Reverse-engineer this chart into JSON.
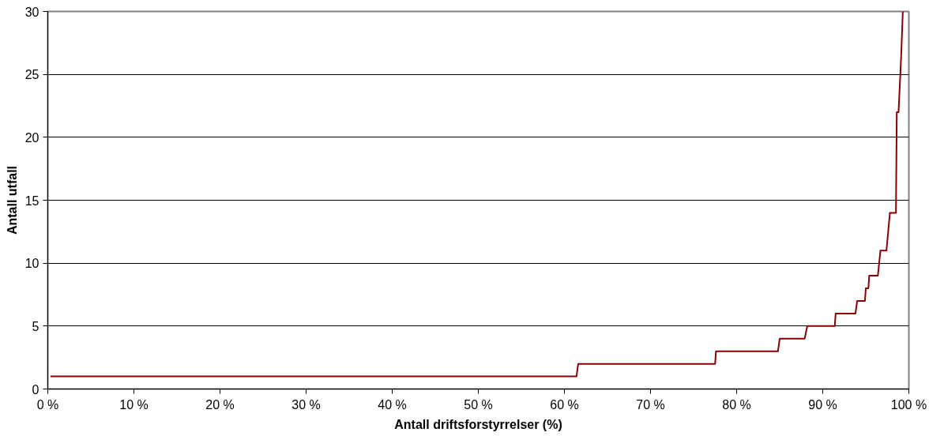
{
  "chart_data": {
    "type": "line",
    "xlabel": "Antall driftsforstyrrelser (%)",
    "ylabel": "Antall utfall",
    "series": [
      {
        "color": "#8b0000",
        "x": [
          0.3,
          61.4,
          61.6,
          77.5,
          77.6,
          84.8,
          85.0,
          87.9,
          88.2,
          91.4,
          91.5,
          93.8,
          94.0,
          94.9,
          95.0,
          95.3,
          95.4,
          96.4,
          96.7,
          97.4,
          97.8,
          98.5,
          98.6,
          98.8,
          98.9,
          99.1,
          99.3
        ],
        "values": [
          1,
          1,
          2,
          2,
          3,
          3,
          4,
          4,
          5,
          5,
          6,
          6,
          7,
          7,
          8,
          8,
          9,
          9,
          11,
          11,
          14,
          14,
          22,
          22,
          23.4,
          26.3,
          30
        ]
      }
    ],
    "xlim": [
      0,
      100
    ],
    "ylim": [
      0,
      30
    ],
    "xticks": [
      {
        "value": 0,
        "label": "0 %"
      },
      {
        "value": 10,
        "label": "10 %"
      },
      {
        "value": 20,
        "label": "20 %"
      },
      {
        "value": 30,
        "label": "30 %"
      },
      {
        "value": 40,
        "label": "40 %"
      },
      {
        "value": 50,
        "label": "50 %"
      },
      {
        "value": 60,
        "label": "60 %"
      },
      {
        "value": 70,
        "label": "70 %"
      },
      {
        "value": 80,
        "label": "80 %"
      },
      {
        "value": 90,
        "label": "90 %"
      },
      {
        "value": 100,
        "label": "100 %"
      }
    ],
    "yticks": [
      0,
      5,
      10,
      15,
      20,
      25,
      30
    ],
    "grid": "y",
    "marker": "none",
    "line_style": "solid"
  }
}
